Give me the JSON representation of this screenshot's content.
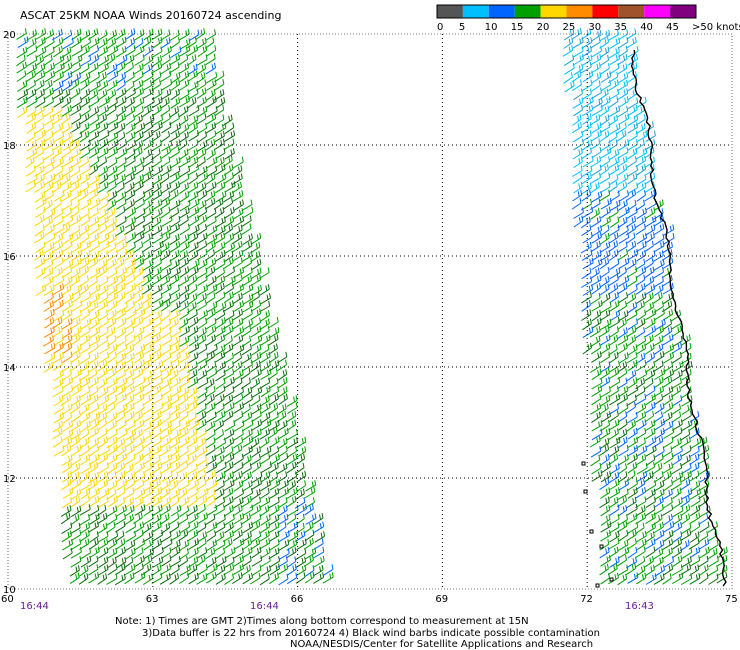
{
  "title": "ASCAT 25KM NOAA Winds 20160724 ascending",
  "colorbar": {
    "labels": [
      "0",
      "5",
      "10",
      "15",
      "20",
      "25",
      "30",
      "35",
      "40",
      "45",
      ">50 knots"
    ],
    "colors": [
      "#555555",
      "#00bfff",
      "#0064ff",
      "#00a000",
      "#ffd700",
      "#ff8c00",
      "#ff0000",
      "#a0522d",
      "#ff00ff",
      "#800080"
    ]
  },
  "axes": {
    "lon_ticks": [
      "60",
      "63",
      "66",
      "69",
      "72",
      "75"
    ],
    "lat_ticks": [
      "20",
      "18",
      "16",
      "14",
      "12",
      "10"
    ],
    "lon_range": [
      60,
      75
    ],
    "lat_range": [
      10,
      20
    ]
  },
  "pass_times": [
    "16:44",
    "16:44",
    "16:43"
  ],
  "notes": {
    "line1": "Note: 1) Times are GMT 2)Times along bottom correspond to measurement at 15N",
    "line2": "3)Data buffer is 22 hrs from 20160724 4) Black wind barbs indicate possible contamination",
    "line3": "NOAA/NESDIS/Center for Satellite Applications and Research"
  }
}
